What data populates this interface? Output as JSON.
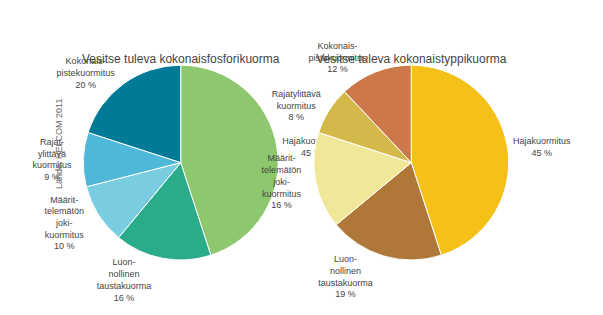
{
  "chart_data": [
    {
      "type": "pie",
      "title": "Vesitse tuleva kokonaisfosforikuorma",
      "categories": [
        "Hajakuormitus",
        "Luon-\nnollinen\ntaustakuorma",
        "Määrit-\ntelemätön\njoki-\nkuormitus",
        "Rajat-\nylittävä\nkuormitus",
        "Kokonais-\npistekuormitus"
      ],
      "values": [
        45,
        16,
        10,
        9,
        20
      ],
      "value_labels": [
        "45 %",
        "16 %",
        "10 %",
        "9 %",
        "20 %"
      ],
      "data_labels": true,
      "colors": [
        "#8dc86e",
        "#2aab8a",
        "#7acde0",
        "#4db8d8",
        "#007a96"
      ],
      "annotations": [
        "Lähde: HELCOM 2011"
      ]
    },
    {
      "type": "pie",
      "title": "Vesitse tuleva kokonaistyppikuorma",
      "categories": [
        "Hajakuormitus",
        "Luon-\nnollinen\ntaustakuorma",
        "Määrit-\ntelemätön\njoki-\nkuormitus",
        "Rajatylittävä\nkuormitus",
        "Kokonais-\npistekuormitus"
      ],
      "values": [
        45,
        19,
        16,
        8,
        12
      ],
      "value_labels": [
        "45 %",
        "19 %",
        "16 %",
        "8 %",
        "12 %"
      ],
      "data_labels": true,
      "colors": [
        "#f5c018",
        "#b07838",
        "#f0e898",
        "#d4b84a",
        "#cc7848"
      ]
    }
  ]
}
